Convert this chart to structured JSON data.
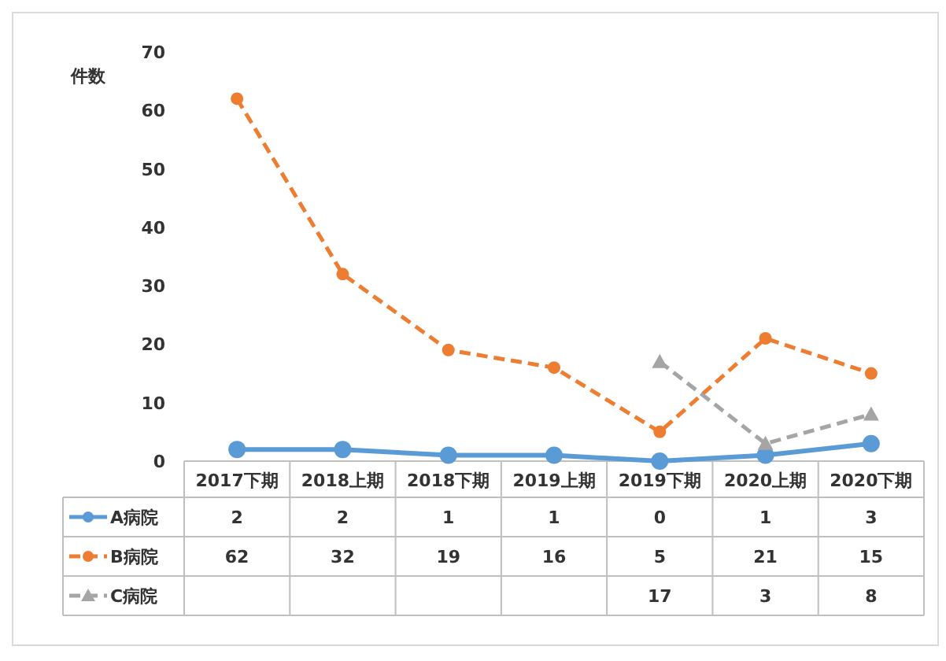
{
  "chart_data": {
    "type": "line",
    "ylabel": "件数",
    "categories": [
      "2017下期",
      "2018上期",
      "2018下期",
      "2019上期",
      "2019下期",
      "2020上期",
      "2020下期"
    ],
    "ylim": [
      0,
      70
    ],
    "yticks": [
      0,
      10,
      20,
      30,
      40,
      50,
      60,
      70
    ],
    "grid": false,
    "legend": "bottom",
    "data_labels": true,
    "series": [
      {
        "name": "A病院",
        "color": "#5b9bd5",
        "marker": "circle",
        "line_style": "solid",
        "values": [
          2,
          2,
          1,
          1,
          0,
          1,
          3
        ]
      },
      {
        "name": "B病院",
        "color": "#ed7d31",
        "marker": "circle",
        "line_style": "dashed",
        "values": [
          62,
          32,
          19,
          16,
          5,
          21,
          15
        ]
      },
      {
        "name": "C病院",
        "color": "#a5a5a5",
        "marker": "triangle",
        "line_style": "dashed",
        "values": [
          null,
          null,
          null,
          null,
          17,
          3,
          8
        ]
      }
    ]
  }
}
